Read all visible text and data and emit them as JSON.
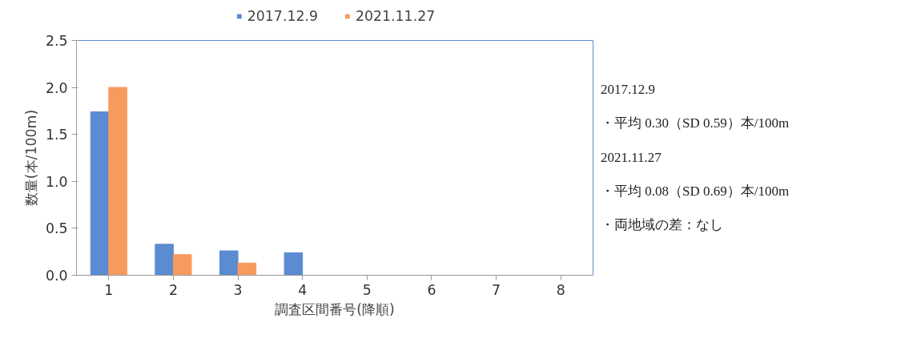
{
  "chart_data": {
    "type": "bar",
    "xlabel": "調査区間番号(降順)",
    "ylabel": "数量(本/100m)",
    "categories": [
      "1",
      "2",
      "3",
      "4",
      "5",
      "6",
      "7",
      "8"
    ],
    "series": [
      {
        "name": "2017.12.9",
        "color": "#5b8bd0",
        "values": [
          1.74,
          0.33,
          0.26,
          0.24,
          0,
          0,
          0,
          0
        ]
      },
      {
        "name": "2021.11.27",
        "color": "#f79a5e",
        "values": [
          2.0,
          0.22,
          0.13,
          0,
          0,
          0,
          0,
          0
        ]
      }
    ],
    "ylim": [
      0,
      2.5
    ],
    "yticks": [
      {
        "value": 0,
        "label": "0.0"
      },
      {
        "value": 0.5,
        "label": "0.5"
      },
      {
        "value": 1,
        "label": "1.0"
      },
      {
        "value": 1.5,
        "label": "1.5"
      },
      {
        "value": 2,
        "label": "2.0"
      },
      {
        "value": 2.5,
        "label": "2.5"
      }
    ],
    "grid": false,
    "legend": "top",
    "annotations": [
      "2017.12.9",
      "・平均 0.30（SD 0.59）本/100m",
      "2021.11.27",
      "・平均 0.08（SD 0.69）本/100m",
      "・両地域の差：なし"
    ]
  }
}
